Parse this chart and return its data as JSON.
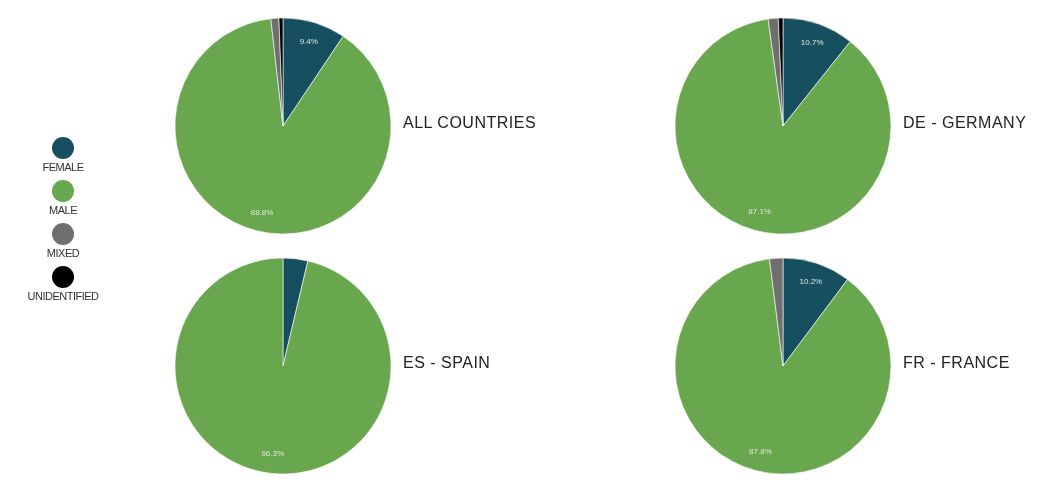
{
  "chart_data": [
    {
      "type": "pie",
      "title": "ALL COUNTRIES",
      "categories": [
        "FEMALE",
        "MALE",
        "MIXED",
        "UNIDENTIFIED"
      ],
      "values": [
        9.4,
        88.8,
        1.2,
        0.6
      ],
      "colors": [
        "#164f5f",
        "#69a74e",
        "#6f6f6f",
        "#000000"
      ],
      "value_labels": [
        "9.4%",
        "88.8%",
        null,
        null
      ],
      "legend": "left"
    },
    {
      "type": "pie",
      "title": "DE - GERMANY",
      "categories": [
        null,
        null,
        null,
        null
      ],
      "values": [
        10.7,
        87.1,
        1.5,
        0.7
      ],
      "colors": [
        "#164f5f",
        "#69a74e",
        "#6f6f6f",
        "#000000"
      ],
      "value_labels": [
        "10.7%",
        "87.1%",
        null,
        null
      ]
    },
    {
      "type": "pie",
      "title": "ES - SPAIN",
      "categories": [
        null,
        null,
        null,
        null
      ],
      "values": [
        3.7,
        96.3,
        0,
        0
      ],
      "colors": [
        "#164f5f",
        "#69a74e",
        "#6f6f6f",
        "#000000"
      ],
      "value_labels": [
        null,
        "96.3%",
        null,
        null
      ]
    },
    {
      "type": "pie",
      "title": "FR - FRANCE",
      "categories": [
        null,
        null,
        null,
        null
      ],
      "values": [
        10.2,
        87.8,
        2.0,
        0
      ],
      "colors": [
        "#164f5f",
        "#69a74e",
        "#6f6f6f",
        "#000000"
      ],
      "value_labels": [
        "10.2%",
        "87.8%",
        null,
        null
      ]
    }
  ]
}
